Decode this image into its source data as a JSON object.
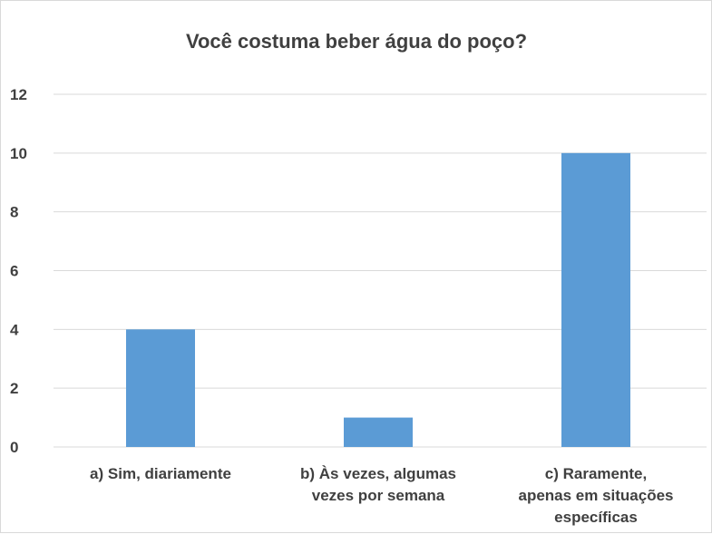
{
  "chart_data": {
    "type": "bar",
    "title": "Você costuma beber água do poço?",
    "categories": [
      "a) Sim, diariamente",
      "b) Às vezes, algumas vezes por semana",
      "c) Raramente, apenas em situações específicas"
    ],
    "category_lines": [
      [
        "a) Sim, diariamente"
      ],
      [
        "b) Às vezes, algumas",
        "vezes por semana"
      ],
      [
        "c) Raramente,",
        "apenas em situações",
        "específicas"
      ]
    ],
    "values": [
      4,
      1,
      10
    ],
    "ylim": [
      0,
      12
    ],
    "yticks": [
      "0",
      "2",
      "4",
      "6",
      "8",
      "10",
      "12"
    ],
    "xlabel": "",
    "ylabel": "",
    "grid": true,
    "legend": "none",
    "colors": {
      "bar": "#5b9bd5",
      "grid": "#d9d9d9",
      "text": "#404040"
    }
  }
}
